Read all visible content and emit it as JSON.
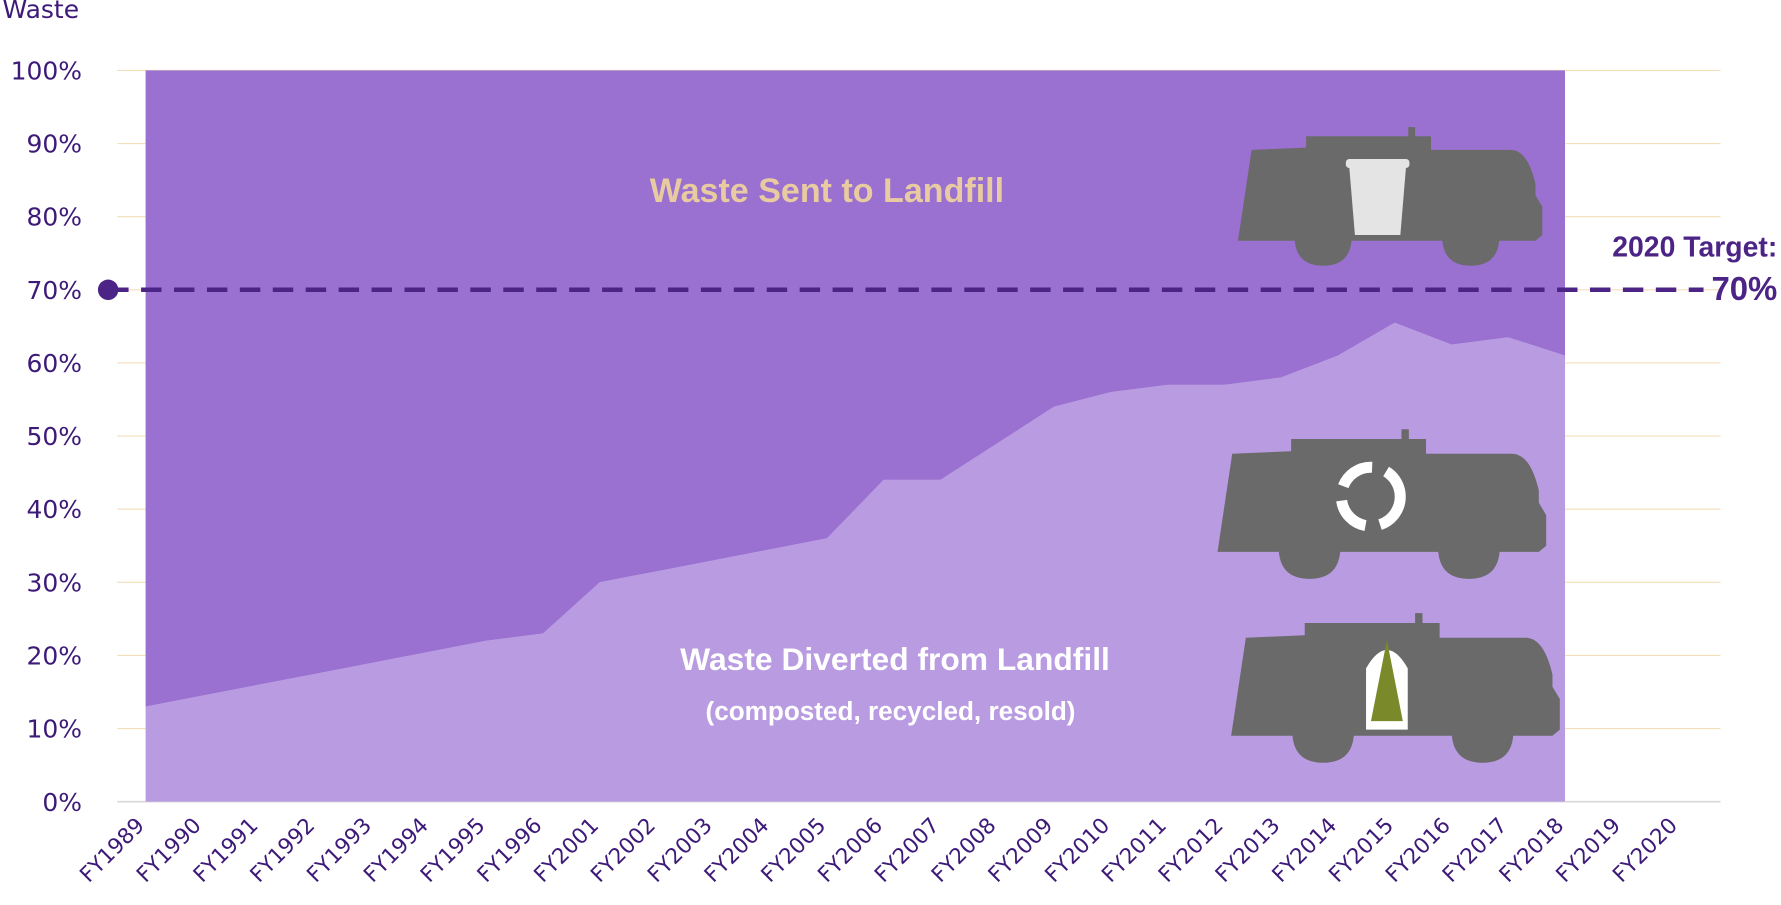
{
  "chart_data": {
    "type": "stacked-area",
    "y_label": "Waste",
    "categories": [
      "FY1989",
      "FY1990",
      "FY1991",
      "FY1992",
      "FY1993",
      "FY1994",
      "FY1995",
      "FY1996",
      "FY2001",
      "FY2002",
      "FY2003",
      "FY2004",
      "FY2005",
      "FY2006",
      "FY2007",
      "FY2008",
      "FY2009",
      "FY2010",
      "FY2011",
      "FY2012",
      "FY2013",
      "FY2014",
      "FY2015",
      "FY2016",
      "FY2017",
      "FY2018",
      "FY2019",
      "FY2020"
    ],
    "series": [
      {
        "name": "Waste Diverted from Landfill",
        "color": "#b89be0",
        "values": [
          13,
          14.5,
          16,
          17.5,
          19,
          20.5,
          22,
          23,
          30,
          31.5,
          33,
          34.5,
          36,
          44,
          44,
          49,
          54,
          56,
          57,
          57,
          58,
          61,
          65.5,
          62.5,
          63.5,
          61,
          null,
          null
        ]
      },
      {
        "name": "Waste Sent to Landfill",
        "color": "#9a70d1",
        "values": [
          87,
          85.5,
          84,
          82.5,
          81,
          79.5,
          78,
          77,
          70,
          68.5,
          67,
          65.5,
          64,
          56,
          56,
          51,
          46,
          44,
          43,
          43,
          42,
          39,
          34.5,
          37.5,
          36.5,
          39,
          null,
          null
        ]
      }
    ],
    "diverted_note": "(composted, recycled, resold)",
    "target": {
      "value": 70,
      "label": "2020 Target:",
      "value_label": "70%",
      "color": "#4b2486"
    },
    "ylim": [
      0,
      100
    ],
    "yticks": [
      {
        "value": 0,
        "label": "0%"
      },
      {
        "value": 10,
        "label": "10%"
      },
      {
        "value": 20,
        "label": "20%"
      },
      {
        "value": 30,
        "label": "30%"
      },
      {
        "value": 40,
        "label": "40%"
      },
      {
        "value": 50,
        "label": "50%"
      },
      {
        "value": 60,
        "label": "60%"
      },
      {
        "value": 70,
        "label": "70%"
      },
      {
        "value": 80,
        "label": "80%"
      },
      {
        "value": 90,
        "label": "90%"
      },
      {
        "value": 100,
        "label": "100%"
      }
    ],
    "grid": true
  }
}
